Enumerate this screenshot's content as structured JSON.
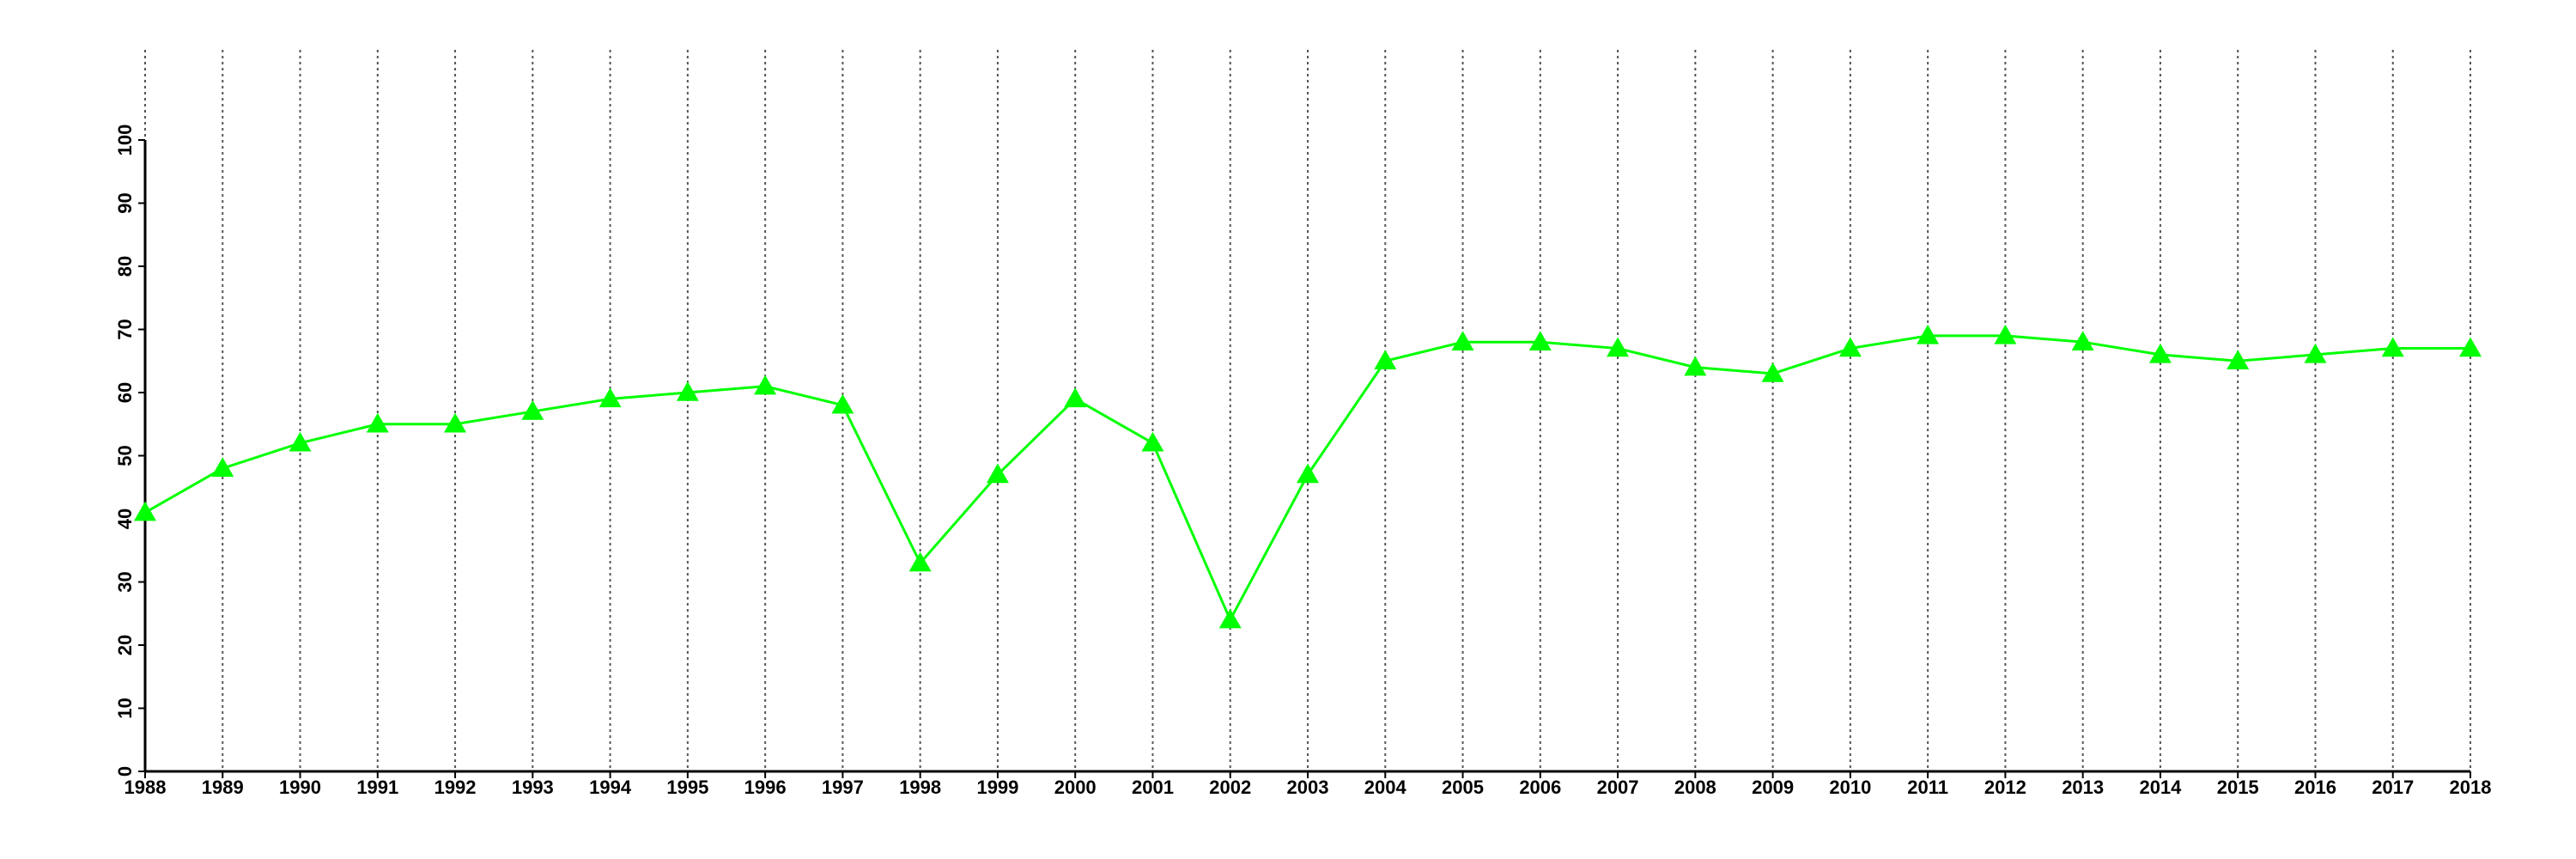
{
  "chart_data": {
    "type": "line",
    "x": [
      1988,
      1989,
      1990,
      1991,
      1992,
      1993,
      1994,
      1995,
      1996,
      1997,
      1998,
      1999,
      2000,
      2001,
      2002,
      2003,
      2004,
      2005,
      2006,
      2007,
      2008,
      2009,
      2010,
      2011,
      2012,
      2013,
      2014,
      2015,
      2016,
      2017,
      2018
    ],
    "series": [
      {
        "color": "#00ff00",
        "marker": "triangle",
        "values": [
          41,
          48,
          52,
          55,
          55,
          57,
          59,
          60,
          61,
          58,
          33,
          47,
          59,
          52,
          24,
          47,
          65,
          68,
          68,
          67,
          64,
          63,
          67,
          69,
          69,
          68,
          66,
          65,
          66,
          67,
          67
        ]
      }
    ],
    "xlim": [
      1988,
      2018
    ],
    "xticks": [
      1988,
      1989,
      1990,
      1991,
      1992,
      1993,
      1994,
      1995,
      1996,
      1997,
      1998,
      1999,
      2000,
      2001,
      2002,
      2003,
      2004,
      2005,
      2006,
      2007,
      2008,
      2009,
      2010,
      2011,
      2012,
      2013,
      2014,
      2015,
      2016,
      2017,
      2018
    ],
    "ylim": [
      0,
      100
    ],
    "yticks": [
      0,
      10,
      20,
      30,
      40,
      50,
      60,
      70,
      80,
      90,
      100
    ],
    "grid": "x"
  }
}
